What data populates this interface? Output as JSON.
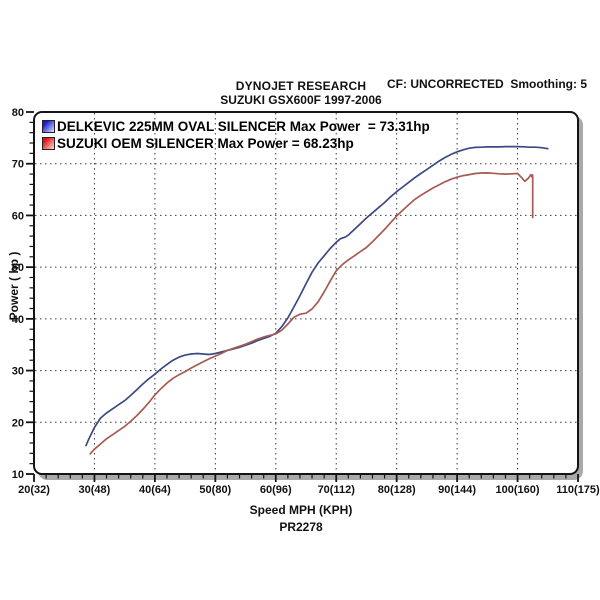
{
  "header": {
    "brand": "DYNOJET RESEARCH",
    "subtitle": "SUZUKI GSX600F 1997-2006",
    "correction_note": "CF: UNCORRECTED  Smoothing: 5"
  },
  "chart_data": {
    "type": "line",
    "title": "DYNOJET RESEARCH - SUZUKI GSX600F 1997-2006",
    "xlabel": "Speed MPH (KPH)",
    "ylabel": "Power ( hp )",
    "footer_code": "PR2278",
    "xlim": [
      20,
      110
    ],
    "ylim": [
      10,
      80
    ],
    "x_major_step": 10,
    "x_minor_step": 2,
    "y_major_step": 10,
    "y_minor_step": 2,
    "grid": "dashed",
    "legend_position": "top-left",
    "x_tick_labels": [
      "20(32)",
      "30(48)",
      "40(64)",
      "50(80)",
      "60(96)",
      "70(112)",
      "80(128)",
      "90(144)",
      "100(160)",
      "110(175)"
    ],
    "y_tick_labels": [
      "10",
      "20",
      "30",
      "40",
      "50",
      "60",
      "70",
      "80"
    ],
    "series": [
      {
        "name": "DELKEVIC 225MM OVAL SILENCER",
        "legend_label": "DELKEVIC 225MM OVAL SILENCER Max Power  = 73.31hp",
        "max_power_hp": 73.31,
        "color": "#3d4a82",
        "swatch_gradient": [
          "#1a1acc",
          "#ccd8f8"
        ],
        "points_mph_hp": [
          [
            28.6,
            15.5
          ],
          [
            29,
            16.6
          ],
          [
            30,
            19
          ],
          [
            31,
            20.8
          ],
          [
            32,
            21.8
          ],
          [
            33,
            22.6
          ],
          [
            34,
            23.4
          ],
          [
            35,
            24.2
          ],
          [
            36,
            25.2
          ],
          [
            37,
            26.3
          ],
          [
            38,
            27.4
          ],
          [
            39,
            28.4
          ],
          [
            40,
            29.3
          ],
          [
            41,
            30.3
          ],
          [
            42,
            31.2
          ],
          [
            43,
            32
          ],
          [
            44,
            32.6
          ],
          [
            45,
            33
          ],
          [
            46,
            33.2
          ],
          [
            47,
            33.3
          ],
          [
            48,
            33.2
          ],
          [
            49,
            33.1
          ],
          [
            50,
            33.3
          ],
          [
            51,
            33.6
          ],
          [
            52,
            33.9
          ],
          [
            53,
            34.2
          ],
          [
            54,
            34.5
          ],
          [
            55,
            34.9
          ],
          [
            56,
            35.3
          ],
          [
            57,
            35.8
          ],
          [
            58,
            36.2
          ],
          [
            59,
            36.6
          ],
          [
            60,
            37.2
          ],
          [
            61,
            38.5
          ],
          [
            62,
            40.2
          ],
          [
            63,
            42.3
          ],
          [
            64,
            44.5
          ],
          [
            65,
            46.8
          ],
          [
            66,
            49
          ],
          [
            67,
            50.8
          ],
          [
            68,
            52.2
          ],
          [
            69,
            53.6
          ],
          [
            70,
            54.8
          ],
          [
            70.7,
            55.5
          ],
          [
            71.5,
            55.8
          ],
          [
            72,
            56.2
          ],
          [
            73,
            57.3
          ],
          [
            74,
            58.4
          ],
          [
            75,
            59.5
          ],
          [
            76,
            60.5
          ],
          [
            77,
            61.5
          ],
          [
            78,
            62.5
          ],
          [
            79,
            63.6
          ],
          [
            80,
            64.6
          ],
          [
            81,
            65.5
          ],
          [
            82,
            66.4
          ],
          [
            83,
            67.3
          ],
          [
            84,
            68.1
          ],
          [
            85,
            68.9
          ],
          [
            86,
            69.7
          ],
          [
            87,
            70.5
          ],
          [
            88,
            71.2
          ],
          [
            89,
            71.8
          ],
          [
            90,
            72.3
          ],
          [
            91,
            72.7
          ],
          [
            92,
            73
          ],
          [
            93,
            73.15
          ],
          [
            94,
            73.2
          ],
          [
            95,
            73.25
          ],
          [
            96,
            73.28
          ],
          [
            97,
            73.25
          ],
          [
            98,
            73.31
          ],
          [
            99,
            73.3
          ],
          [
            100,
            73.3
          ],
          [
            101,
            73.28
          ],
          [
            102,
            73.2
          ],
          [
            103,
            73.2
          ],
          [
            104,
            73.1
          ],
          [
            105,
            72.9
          ]
        ]
      },
      {
        "name": "SUZUKI OEM SILENCER",
        "legend_label": "SUZUKI OEM SILENCER Max Power = 68.23hp",
        "max_power_hp": 68.23,
        "color": "#a65a52",
        "swatch_gradient": [
          "#e01414",
          "#f8d0cc"
        ],
        "points_mph_hp": [
          [
            29.3,
            13.9
          ],
          [
            30,
            14.8
          ],
          [
            31,
            15.8
          ],
          [
            32,
            16.8
          ],
          [
            33,
            17.6
          ],
          [
            34,
            18.4
          ],
          [
            35,
            19.2
          ],
          [
            36,
            20.2
          ],
          [
            37,
            21.3
          ],
          [
            38,
            22.5
          ],
          [
            39,
            23.8
          ],
          [
            40,
            25.3
          ],
          [
            41,
            26.5
          ],
          [
            42,
            27.6
          ],
          [
            43,
            28.5
          ],
          [
            44,
            29.2
          ],
          [
            45,
            29.8
          ],
          [
            46,
            30.5
          ],
          [
            47,
            31.1
          ],
          [
            48,
            31.7
          ],
          [
            49,
            32.3
          ],
          [
            50,
            32.8
          ],
          [
            51,
            33.3
          ],
          [
            52,
            33.9
          ],
          [
            53,
            34.3
          ],
          [
            54,
            34.7
          ],
          [
            55,
            35.1
          ],
          [
            56,
            35.6
          ],
          [
            57,
            36.1
          ],
          [
            58,
            36.5
          ],
          [
            59,
            36.8
          ],
          [
            60,
            37.1
          ],
          [
            61,
            37.8
          ],
          [
            62,
            39
          ],
          [
            63,
            40.3
          ],
          [
            64,
            40.9
          ],
          [
            65,
            41.1
          ],
          [
            66,
            41.9
          ],
          [
            67,
            43.3
          ],
          [
            68,
            45.2
          ],
          [
            69,
            47.3
          ],
          [
            70,
            49.3
          ],
          [
            71,
            50.5
          ],
          [
            72,
            51.4
          ],
          [
            73,
            52.2
          ],
          [
            74,
            53
          ],
          [
            75,
            53.8
          ],
          [
            76,
            54.9
          ],
          [
            77,
            56.1
          ],
          [
            78,
            57.3
          ],
          [
            79,
            58.6
          ],
          [
            80,
            59.9
          ],
          [
            81,
            61
          ],
          [
            82,
            62.1
          ],
          [
            83,
            63.1
          ],
          [
            84,
            63.9
          ],
          [
            85,
            64.6
          ],
          [
            86,
            65.3
          ],
          [
            87,
            65.9
          ],
          [
            88,
            66.5
          ],
          [
            89,
            67
          ],
          [
            90,
            67.4
          ],
          [
            91,
            67.7
          ],
          [
            92,
            67.9
          ],
          [
            93,
            68.1
          ],
          [
            94,
            68.2
          ],
          [
            95,
            68.23
          ],
          [
            96,
            68.15
          ],
          [
            97,
            68.05
          ],
          [
            98,
            68
          ],
          [
            99,
            68.05
          ],
          [
            100,
            68.1
          ],
          [
            100.6,
            67.4
          ],
          [
            101.2,
            66.6
          ],
          [
            101.8,
            67.2
          ],
          [
            102.2,
            67.9
          ],
          [
            102.4,
            67.4
          ],
          [
            102.5,
            67.8
          ],
          [
            102.5,
            59.6
          ]
        ]
      }
    ]
  }
}
